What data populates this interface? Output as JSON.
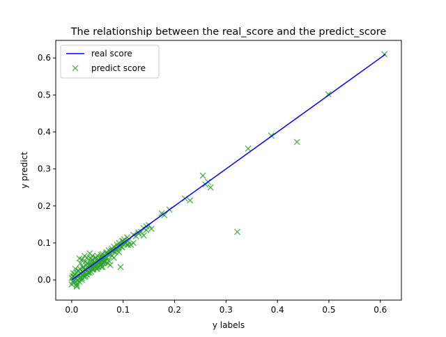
{
  "chart_data": {
    "type": "scatter",
    "title": "The relationship between the real_score and the predict_score",
    "xlabel": "y labels",
    "ylabel": "y predict",
    "xlim": [
      -0.031,
      0.641
    ],
    "ylim": [
      -0.0545,
      0.6475
    ],
    "xticks": [
      "0.0",
      "0.1",
      "0.2",
      "0.3",
      "0.4",
      "0.5",
      "0.6"
    ],
    "yticks": [
      "0.0",
      "0.1",
      "0.2",
      "0.3",
      "0.4",
      "0.5",
      "0.6"
    ],
    "grid": false,
    "legend": {
      "position": "top-left"
    },
    "series": [
      {
        "name": "real score",
        "type": "line",
        "color": "#0000ff",
        "x": [
          0.0,
          0.61
        ],
        "y": [
          0.0,
          0.61
        ]
      },
      {
        "name": "predict score",
        "type": "scatter",
        "marker": "x",
        "color": "#2ca02c",
        "x": [
          0.0,
          0.002,
          0.004,
          0.005,
          0.006,
          0.008,
          0.01,
          0.01,
          0.012,
          0.013,
          0.015,
          0.016,
          0.018,
          0.02,
          0.02,
          0.022,
          0.024,
          0.025,
          0.027,
          0.028,
          0.03,
          0.03,
          0.032,
          0.034,
          0.035,
          0.037,
          0.038,
          0.04,
          0.04,
          0.042,
          0.044,
          0.045,
          0.047,
          0.048,
          0.05,
          0.05,
          0.052,
          0.054,
          0.055,
          0.057,
          0.058,
          0.06,
          0.06,
          0.062,
          0.064,
          0.065,
          0.067,
          0.068,
          0.07,
          0.072,
          0.075,
          0.078,
          0.08,
          0.082,
          0.085,
          0.088,
          0.09,
          0.092,
          0.095,
          0.098,
          0.1,
          0.102,
          0.105,
          0.108,
          0.11,
          0.115,
          0.12,
          0.125,
          0.13,
          0.135,
          0.14,
          0.145,
          0.15,
          0.155,
          0.0,
          0.005,
          0.01,
          0.015,
          0.02,
          0.025,
          0.03,
          0.035,
          0.04,
          0.045,
          0.05,
          0.055,
          0.06,
          0.003,
          0.008,
          0.013,
          0.018,
          0.023,
          0.028,
          0.033,
          0.038,
          0.043,
          0.048,
          0.053,
          0.058,
          0.063,
          0.068,
          0.073,
          0.078,
          0.083,
          0.088,
          0.093,
          0.098,
          0.103,
          0.108,
          0.002,
          0.007,
          0.012,
          0.017,
          0.022,
          0.027,
          0.032,
          0.037,
          0.042,
          0.047,
          0.052,
          0.057,
          0.062,
          0.067,
          0.072,
          0.077,
          0.082,
          0.087,
          0.092,
          0.097,
          0.015,
          0.025,
          0.035,
          0.045,
          0.055,
          0.065,
          0.075,
          0.085,
          0.01,
          0.02,
          0.03,
          0.04,
          0.05,
          0.06,
          0.07,
          0.095,
          0.1,
          0.11,
          0.12,
          0.13,
          0.14,
          0.145,
          0.175,
          0.18,
          0.19,
          0.22,
          0.23,
          0.255,
          0.26,
          0.265,
          0.27,
          0.322,
          0.343,
          0.388,
          0.438,
          0.499,
          0.608
        ],
        "y": [
          0.005,
          -0.005,
          0.01,
          0.0,
          0.015,
          0.005,
          0.02,
          -0.01,
          0.012,
          0.025,
          0.003,
          0.03,
          0.015,
          0.022,
          0.005,
          0.035,
          0.018,
          0.028,
          0.01,
          0.04,
          0.025,
          0.045,
          0.02,
          0.038,
          0.03,
          0.042,
          0.05,
          0.035,
          0.055,
          0.032,
          0.048,
          0.04,
          0.06,
          0.038,
          0.052,
          0.065,
          0.045,
          0.05,
          0.058,
          0.062,
          0.042,
          0.055,
          0.07,
          0.06,
          0.048,
          0.065,
          0.058,
          0.075,
          0.07,
          0.08,
          0.072,
          0.085,
          0.078,
          0.09,
          0.082,
          0.095,
          0.088,
          0.1,
          0.092,
          0.105,
          0.098,
          0.11,
          0.1,
          0.115,
          0.105,
          0.095,
          0.122,
          0.118,
          0.128,
          0.13,
          0.14,
          0.135,
          0.148,
          0.138,
          -0.012,
          -0.008,
          -0.015,
          -0.005,
          0.0,
          0.008,
          0.015,
          0.02,
          0.028,
          0.035,
          0.042,
          0.048,
          0.052,
          0.018,
          0.002,
          0.025,
          0.008,
          0.032,
          0.015,
          0.04,
          0.022,
          0.048,
          0.03,
          0.055,
          0.035,
          0.05,
          0.062,
          0.07,
          0.065,
          0.078,
          0.085,
          0.092,
          0.088,
          0.1,
          0.095,
          0.01,
          0.03,
          0.0,
          0.045,
          0.012,
          0.05,
          0.02,
          0.058,
          0.028,
          0.06,
          0.035,
          0.068,
          0.045,
          0.072,
          0.052,
          0.08,
          0.06,
          0.082,
          0.075,
          0.09,
          0.058,
          0.065,
          0.072,
          0.035,
          0.042,
          0.05,
          0.04,
          0.075,
          -0.018,
          0.055,
          0.06,
          0.065,
          0.03,
          0.035,
          0.045,
          0.035,
          0.105,
          0.095,
          0.1,
          0.125,
          0.12,
          0.145,
          0.18,
          0.175,
          0.19,
          0.22,
          0.215,
          0.282,
          0.258,
          0.265,
          0.25,
          0.13,
          0.355,
          0.39,
          0.373,
          0.502,
          0.61
        ]
      }
    ]
  }
}
